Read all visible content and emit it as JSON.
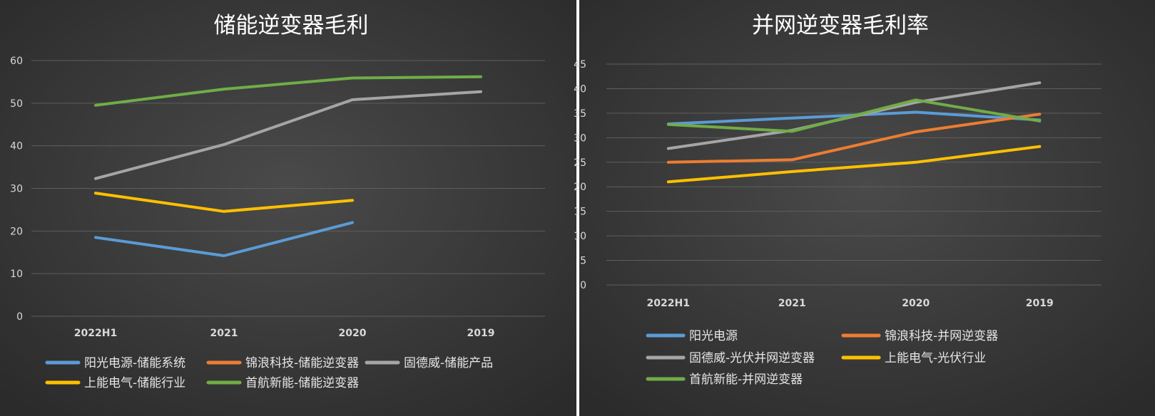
{
  "chart_data": [
    {
      "type": "line",
      "title": "储能逆变器毛利",
      "categories": [
        "2022H1",
        "2021",
        "2020",
        "2019"
      ],
      "ylim": [
        0,
        60
      ],
      "yticks": [
        0,
        10,
        20,
        30,
        40,
        50,
        60
      ],
      "grid": true,
      "legend_position": "bottom",
      "series": [
        {
          "name": "阳光电源-储能系统",
          "color": "#5b9bd5",
          "values": [
            18.5,
            14.2,
            22,
            null
          ]
        },
        {
          "name": "锦浪科技-储能逆变器",
          "color": "#ed7d31",
          "values": [
            null,
            null,
            null,
            null
          ]
        },
        {
          "name": "固德威-储能产品",
          "color": "#a5a5a5",
          "values": [
            32.3,
            40.3,
            50.8,
            52.7
          ]
        },
        {
          "name": "上能电气-储能行业",
          "color": "#ffc000",
          "values": [
            28.9,
            24.6,
            27.2,
            null
          ]
        },
        {
          "name": "首航新能-储能逆变器",
          "color": "#70ad47",
          "values": [
            49.5,
            53.3,
            55.9,
            56.2
          ]
        }
      ]
    },
    {
      "type": "line",
      "title": "并网逆变器毛利率",
      "categories": [
        "2022H1",
        "2021",
        "2020",
        "2019"
      ],
      "ylim": [
        0,
        45
      ],
      "yticks": [
        0,
        5,
        10,
        15,
        20,
        25,
        30,
        35,
        40,
        45
      ],
      "grid": true,
      "legend_position": "bottom",
      "series": [
        {
          "name": "阳光电源",
          "color": "#5b9bd5",
          "values": [
            32.8,
            34.0,
            35.2,
            33.6
          ]
        },
        {
          "name": "锦浪科技-并网逆变器",
          "color": "#ed7d31",
          "values": [
            25.0,
            25.5,
            31.2,
            34.8
          ]
        },
        {
          "name": "固德威-光伏并网逆变器",
          "color": "#a5a5a5",
          "values": [
            27.8,
            31.5,
            37.2,
            41.2
          ]
        },
        {
          "name": "上能电气-光伏行业",
          "color": "#ffc000",
          "values": [
            21.0,
            23.1,
            25.0,
            28.2
          ]
        },
        {
          "name": "首航新能-并网逆变器",
          "color": "#70ad47",
          "values": [
            32.7,
            31.3,
            37.7,
            33.4
          ]
        }
      ]
    }
  ]
}
